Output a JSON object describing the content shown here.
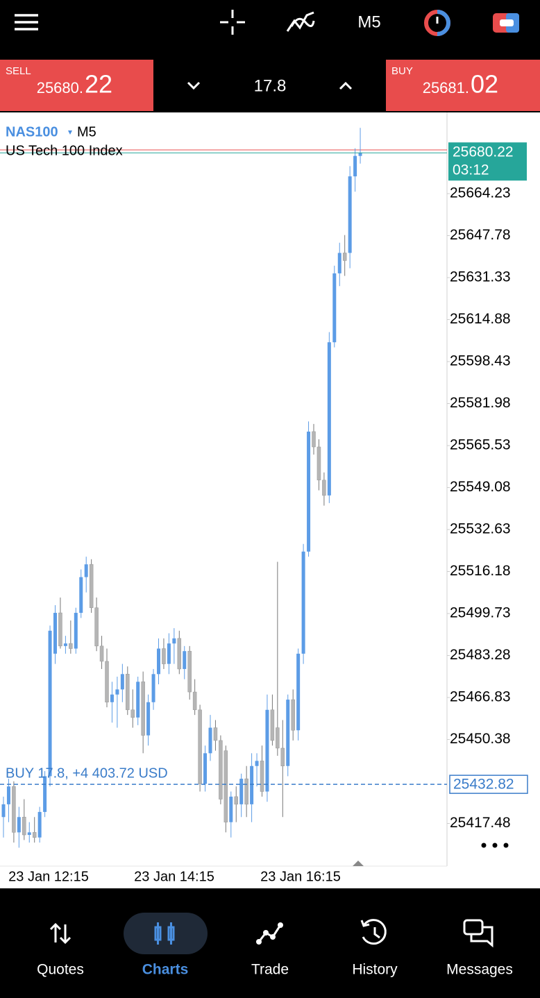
{
  "header": {
    "timeframe": "M5"
  },
  "quote": {
    "sell_label": "SELL",
    "sell_main": "25680.",
    "sell_big": "22",
    "volume": "17.8",
    "buy_label": "BUY",
    "buy_main": "25681.",
    "buy_big": "02"
  },
  "chart_data": {
    "type": "candlestick",
    "symbol": "NAS100",
    "timeframe": "M5",
    "description": "US Tech 100 Index",
    "ylim": [
      25400.77,
      25695.77
    ],
    "yticks": [
      25664.23,
      25647.78,
      25631.33,
      25614.88,
      25598.43,
      25581.98,
      25565.53,
      25549.08,
      25532.63,
      25516.18,
      25499.73,
      25483.28,
      25466.83,
      25450.38,
      25417.48
    ],
    "xticks": [
      "23 Jan 12:15",
      "23 Jan 14:15",
      "23 Jan 16:15"
    ],
    "up_color": "#5c9ce6",
    "down_color": "#b5b5b5",
    "open": [
      25420,
      25425,
      25432,
      25414,
      25420,
      25413,
      25414,
      25412,
      25422,
      25436,
      25484,
      25500,
      25487,
      25488,
      25486,
      25500,
      25514,
      25519,
      25502,
      25487,
      25481,
      25465,
      25468,
      25470,
      25476,
      25462,
      25459,
      25473,
      25452,
      25465,
      25476,
      25486,
      25480,
      25488,
      25490,
      25478,
      25485,
      25469,
      25462,
      25433,
      25445,
      25455,
      25450,
      25446,
      25418,
      25428,
      25425,
      25435,
      25425,
      25440,
      25442,
      25430,
      25462,
      25455,
      25447,
      25440,
      25466,
      25454,
      25484,
      25524,
      25571,
      25565,
      25552,
      25546,
      25606,
      25633,
      25641,
      25641,
      25671,
      25679
    ],
    "high": [
      25428,
      25435,
      25434,
      25424,
      25427,
      25418,
      25420,
      25424,
      25438,
      25495,
      25503,
      25506,
      25491,
      25497,
      25502,
      25517,
      25522,
      25521,
      25506,
      25491,
      25486,
      25473,
      25475,
      25480,
      25479,
      25470,
      25475,
      25477,
      25468,
      25478,
      25490,
      25490,
      25492,
      25494,
      25493,
      25487,
      25487,
      25474,
      25464,
      25448,
      25460,
      25458,
      25452,
      25448,
      25430,
      25432,
      25437,
      25440,
      25445,
      25445,
      25448,
      25468,
      25468,
      25520,
      25458,
      25468,
      25470,
      25486,
      25527,
      25575,
      25574,
      25568,
      25555,
      25610,
      25636,
      25645,
      25648,
      25675,
      25682,
      25690
    ],
    "low": [
      25412,
      25418,
      25410,
      25408,
      25411,
      25410,
      25410,
      25410,
      25420,
      25432,
      25480,
      25486,
      25484,
      25484,
      25484,
      25498,
      25508,
      25500,
      25485,
      25478,
      25463,
      25457,
      25455,
      25465,
      25460,
      25455,
      25456,
      25445,
      25448,
      25462,
      25472,
      25478,
      25476,
      25480,
      25476,
      25474,
      25466,
      25460,
      25430,
      25430,
      25442,
      25446,
      25425,
      25414,
      25412,
      25418,
      25420,
      25420,
      25418,
      25432,
      25428,
      25426,
      25448,
      25444,
      25420,
      25436,
      25450,
      25450,
      25480,
      25522,
      25562,
      25548,
      25542,
      25543,
      25604,
      25628,
      25632,
      25635,
      25665,
      25676
    ],
    "close": [
      25425,
      25432,
      25414,
      25420,
      25413,
      25414,
      25412,
      25422,
      25436,
      25493,
      25500,
      25487,
      25488,
      25486,
      25500,
      25514,
      25519,
      25502,
      25487,
      25481,
      25465,
      25468,
      25470,
      25476,
      25462,
      25459,
      25473,
      25452,
      25465,
      25476,
      25486,
      25480,
      25488,
      25490,
      25478,
      25485,
      25469,
      25462,
      25433,
      25445,
      25455,
      25450,
      25427,
      25418,
      25428,
      25425,
      25435,
      25425,
      25440,
      25442,
      25430,
      25462,
      25450,
      25447,
      25440,
      25466,
      25454,
      25484,
      25524,
      25571,
      25565,
      25552,
      25546,
      25606,
      25633,
      25641,
      25638,
      25671,
      25679,
      25680.22
    ],
    "last_price": 25680.22,
    "timer": "03:12",
    "position_label": "BUY 17.8,  +4 403.72 USD",
    "position_price": 25432.82
  },
  "nav": [
    "Quotes",
    "Charts",
    "Trade",
    "History",
    "Messages"
  ]
}
